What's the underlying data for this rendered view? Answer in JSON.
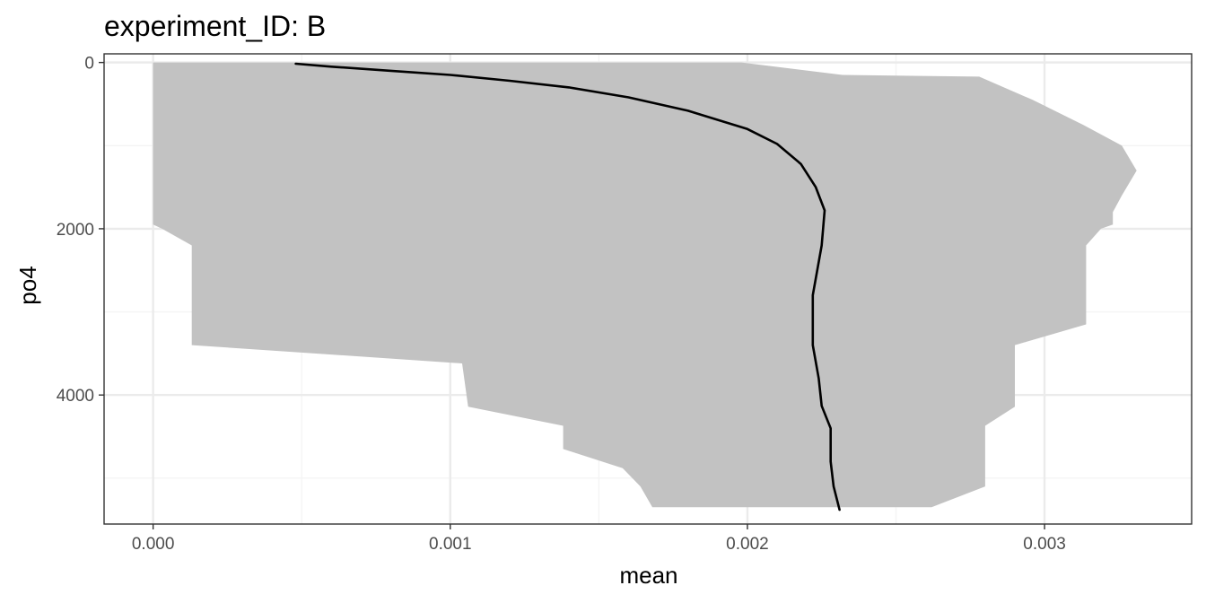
{
  "chart_data": {
    "type": "area",
    "title": "experiment_ID: B",
    "xlabel": "mean",
    "ylabel": "po4",
    "xlim": [
      -0.000165,
      0.003495
    ],
    "ylim": [
      5552,
      -104
    ],
    "y_reversed": true,
    "grid": true,
    "legend": "none",
    "x_ticks": [
      0.0,
      0.001,
      0.002,
      0.003
    ],
    "x_tick_labels": [
      "0.000",
      "0.001",
      "0.002",
      "0.003"
    ],
    "y_ticks": [
      0,
      2000,
      4000
    ],
    "y_tick_labels": [
      "0",
      "2000",
      "4000"
    ],
    "colors": {
      "ribbon": "#c2c2c2",
      "line": "#000000",
      "grid_major": "#ebebeb",
      "grid_minor": "#f4f4f4",
      "panel_border": "#333333"
    },
    "series": [
      {
        "kind": "ribbon",
        "points": [
          {
            "y": 0,
            "xmin": 0.0,
            "xmax": 0.00198
          },
          {
            "y": 150,
            "xmin": 0.0,
            "xmax": 0.00232
          },
          {
            "y": 170,
            "xmin": 0.0,
            "xmax": 0.00278
          },
          {
            "y": 450,
            "xmin": 0.0,
            "xmax": 0.00296
          },
          {
            "y": 750,
            "xmin": 0.0,
            "xmax": 0.00313
          },
          {
            "y": 1000,
            "xmin": 0.0,
            "xmax": 0.00326
          },
          {
            "y": 1300,
            "xmin": 0.0,
            "xmax": 0.00331
          },
          {
            "y": 1600,
            "xmin": 0.0,
            "xmax": 0.00326
          },
          {
            "y": 1800,
            "xmin": 0.0,
            "xmax": 0.00323
          },
          {
            "y": 1950,
            "xmin": 0.0,
            "xmax": 0.00323
          },
          {
            "y": 2000,
            "xmin": 3e-05,
            "xmax": 0.00319
          },
          {
            "y": 2200,
            "xmin": 0.00013,
            "xmax": 0.00314
          },
          {
            "y": 3150,
            "xmin": 0.00013,
            "xmax": 0.00314
          },
          {
            "y": 3400,
            "xmin": 0.00013,
            "xmax": 0.0029
          },
          {
            "y": 3620,
            "xmin": 0.00104,
            "xmax": 0.0029
          },
          {
            "y": 4140,
            "xmin": 0.00106,
            "xmax": 0.0029
          },
          {
            "y": 4370,
            "xmin": 0.00138,
            "xmax": 0.0028
          },
          {
            "y": 4650,
            "xmin": 0.00138,
            "xmax": 0.0028
          },
          {
            "y": 4880,
            "xmin": 0.00158,
            "xmax": 0.0028
          },
          {
            "y": 5100,
            "xmin": 0.00164,
            "xmax": 0.0028
          },
          {
            "y": 5350,
            "xmin": 0.00168,
            "xmax": 0.00262
          }
        ]
      },
      {
        "kind": "line",
        "points": [
          {
            "x": 0.00048,
            "y": 15
          },
          {
            "x": 0.0006,
            "y": 50
          },
          {
            "x": 0.0008,
            "y": 100
          },
          {
            "x": 0.001,
            "y": 150
          },
          {
            "x": 0.0012,
            "y": 220
          },
          {
            "x": 0.0014,
            "y": 300
          },
          {
            "x": 0.0016,
            "y": 420
          },
          {
            "x": 0.0018,
            "y": 580
          },
          {
            "x": 0.002,
            "y": 800
          },
          {
            "x": 0.0021,
            "y": 980
          },
          {
            "x": 0.00218,
            "y": 1220
          },
          {
            "x": 0.00223,
            "y": 1500
          },
          {
            "x": 0.00226,
            "y": 1780
          },
          {
            "x": 0.00225,
            "y": 2200
          },
          {
            "x": 0.00222,
            "y": 2800
          },
          {
            "x": 0.00222,
            "y": 3400
          },
          {
            "x": 0.00224,
            "y": 3800
          },
          {
            "x": 0.00225,
            "y": 4130
          },
          {
            "x": 0.00228,
            "y": 4400
          },
          {
            "x": 0.00228,
            "y": 4800
          },
          {
            "x": 0.00229,
            "y": 5100
          },
          {
            "x": 0.00231,
            "y": 5380
          }
        ]
      }
    ]
  }
}
